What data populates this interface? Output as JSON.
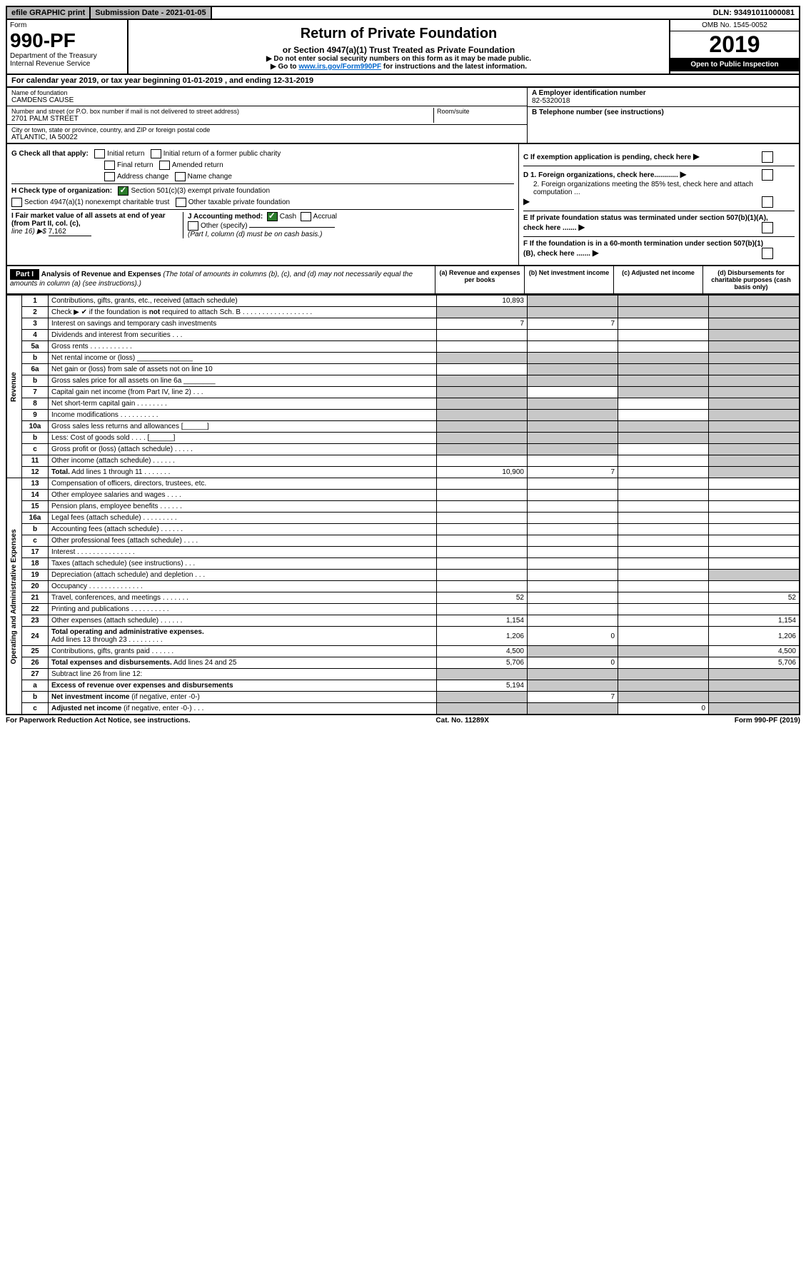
{
  "topbar": {
    "efile": "efile GRAPHIC print",
    "submission": "Submission Date - 2021-01-05",
    "dln": "DLN: 93491011000081"
  },
  "header": {
    "form_label": "Form",
    "form_number": "990-PF",
    "dept1": "Department of the Treasury",
    "dept2": "Internal Revenue Service",
    "title": "Return of Private Foundation",
    "subtitle": "or Section 4947(a)(1) Trust Treated as Private Foundation",
    "inst1": "▶ Do not enter social security numbers on this form as it may be made public.",
    "inst2_pre": "▶ Go to ",
    "inst2_link": "www.irs.gov/Form990PF",
    "inst2_post": " for instructions and the latest information.",
    "omb": "OMB No. 1545-0052",
    "year": "2019",
    "open": "Open to Public Inspection"
  },
  "calyear": "For calendar year 2019, or tax year beginning 01-01-2019                          , and ending 12-31-2019",
  "info": {
    "name_label": "Name of foundation",
    "name": "CAMDENS CAUSE",
    "addr_label": "Number and street (or P.O. box number if mail is not delivered to street address)",
    "addr": "2701 PALM STREET",
    "room_label": "Room/suite",
    "city_label": "City or town, state or province, country, and ZIP or foreign postal code",
    "city": "ATLANTIC, IA  50022",
    "a_label": "A Employer identification number",
    "a_val": "82-5320018",
    "b_label": "B Telephone number (see instructions)",
    "c_label": "C If exemption application is pending, check here",
    "d1": "D 1. Foreign organizations, check here............",
    "d2": "2. Foreign organizations meeting the 85% test, check here and attach computation ...",
    "e": "E  If private foundation status was terminated under section 507(b)(1)(A), check here .......",
    "f": "F  If the foundation is in a 60-month termination under section 507(b)(1)(B), check here .......",
    "g_label": "G Check all that apply:",
    "g_opts": [
      "Initial return",
      "Initial return of a former public charity",
      "Final return",
      "Amended return",
      "Address change",
      "Name change"
    ],
    "h_label": "H Check type of organization:",
    "h_opts": [
      "Section 501(c)(3) exempt private foundation",
      "Section 4947(a)(1) nonexempt charitable trust",
      "Other taxable private foundation"
    ],
    "i_label": "I Fair market value of all assets at end of year (from Part II, col. (c),",
    "i_line16": "line 16) ▶$ ",
    "i_val": "7,162",
    "j_label": "J Accounting method:",
    "j_cash": "Cash",
    "j_accrual": "Accrual",
    "j_other": "Other (specify)",
    "j_note": "(Part I, column (d) must be on cash basis.)"
  },
  "part1": {
    "label": "Part I",
    "title": "Analysis of Revenue and Expenses",
    "title_note": " (The total of amounts in columns (b), (c), and (d) may not necessarily equal the amounts in column (a) (see instructions).)",
    "col_a": "(a)   Revenue and expenses per books",
    "col_b": "(b)  Net investment income",
    "col_c": "(c)  Adjusted net income",
    "col_d": "(d)  Disbursements for charitable purposes (cash basis only)"
  },
  "side_labels": {
    "revenue": "Revenue",
    "expenses": "Operating and Administrative Expenses"
  },
  "lines": [
    {
      "n": "1",
      "d": "Contributions, gifts, grants, etc., received (attach schedule)",
      "a": "10,893",
      "bs": true,
      "cs": true,
      "ds": true
    },
    {
      "n": "2",
      "d": "Check ▶ ✔ if the foundation is <b>not</b> required to attach Sch. B  .  .  .  .  .  .  .  .  .  .  .  .  .  .  .  .  .  .",
      "as": true,
      "bs": true,
      "cs": true,
      "ds": true
    },
    {
      "n": "3",
      "d": "Interest on savings and temporary cash investments",
      "a": "7",
      "b": "7",
      "ds": true
    },
    {
      "n": "4",
      "d": "Dividends and interest from securities   .   .   .",
      "ds": true
    },
    {
      "n": "5a",
      "d": "Gross rents   .  .  .  .  .  .  .  .  .  .  .",
      "ds": true
    },
    {
      "n": "b",
      "d": "Net rental income or (loss)  ______________",
      "as": true,
      "bs": true,
      "cs": true,
      "ds": true
    },
    {
      "n": "6a",
      "d": "Net gain or (loss) from sale of assets not on line 10",
      "bs": true,
      "cs": true,
      "ds": true
    },
    {
      "n": "b",
      "d": "Gross sales price for all assets on line 6a ________",
      "as": true,
      "bs": true,
      "cs": true,
      "ds": true
    },
    {
      "n": "7",
      "d": "Capital gain net income (from Part IV, line 2)   .   .   .",
      "as": true,
      "cs": true,
      "ds": true
    },
    {
      "n": "8",
      "d": "Net short-term capital gain  .  .  .  .  .  .  .  .",
      "as": true,
      "bs": true,
      "ds": true
    },
    {
      "n": "9",
      "d": "Income modifications  .  .  .  .  .  .  .  .  .  .",
      "as": true,
      "bs": true,
      "ds": true
    },
    {
      "n": "10a",
      "d": "Gross sales less returns and allowances  [______]",
      "as": true,
      "bs": true,
      "cs": true,
      "ds": true
    },
    {
      "n": "b",
      "d": "Less: Cost of goods sold    .   .   .   .   [______]",
      "as": true,
      "bs": true,
      "cs": true,
      "ds": true
    },
    {
      "n": "c",
      "d": "Gross profit or (loss) (attach schedule)   .   .   .   .   .",
      "as": true,
      "bs": true,
      "ds": true
    },
    {
      "n": "11",
      "d": "Other income (attach schedule)   .   .   .   .   .   .",
      "ds": true
    },
    {
      "n": "12",
      "d": "<b>Total.</b> Add lines 1 through 11   .   .   .   .   .   .   .",
      "a": "10,900",
      "b": "7",
      "ds": true
    },
    {
      "n": "13",
      "d": "Compensation of officers, directors, trustees, etc."
    },
    {
      "n": "14",
      "d": "Other employee salaries and wages   .   .   .   ."
    },
    {
      "n": "15",
      "d": "Pension plans, employee benefits   .   .   .   .   .   ."
    },
    {
      "n": "16a",
      "d": "Legal fees (attach schedule)  .  .  .  .  .  .  .  .  ."
    },
    {
      "n": "b",
      "d": "Accounting fees (attach schedule)   .   .   .   .   .   ."
    },
    {
      "n": "c",
      "d": "Other professional fees (attach schedule)    .   .   .   ."
    },
    {
      "n": "17",
      "d": "Interest  .  .  .  .  .  .  .  .  .  .  .  .  .  .  ."
    },
    {
      "n": "18",
      "d": "Taxes (attach schedule) (see instructions)    .   .   ."
    },
    {
      "n": "19",
      "d": "Depreciation (attach schedule) and depletion    .   .   .",
      "ds": true
    },
    {
      "n": "20",
      "d": "Occupancy  .  .  .  .  .  .  .  .  .  .  .  .  .  ."
    },
    {
      "n": "21",
      "d": "Travel, conferences, and meetings  .  .  .  .  .  .  .",
      "a": "52",
      "d_v": "52"
    },
    {
      "n": "22",
      "d": "Printing and publications  .  .  .  .  .  .  .  .  .  ."
    },
    {
      "n": "23",
      "d": "Other expenses (attach schedule)   .   .   .   .   .   .",
      "a": "1,154",
      "d_v": "1,154"
    },
    {
      "n": "24",
      "d": "<b>Total operating and administrative expenses.</b><br>Add lines 13 through 23   .   .   .   .   .   .   .   .   .",
      "a": "1,206",
      "b": "0",
      "d_v": "1,206"
    },
    {
      "n": "25",
      "d": "Contributions, gifts, grants paid    .   .   .   .   .   .",
      "a": "4,500",
      "bs": true,
      "cs": true,
      "d_v": "4,500"
    },
    {
      "n": "26",
      "d": "<b>Total expenses and disbursements.</b> Add lines 24 and 25",
      "a": "5,706",
      "b": "0",
      "d_v": "5,706"
    },
    {
      "n": "27",
      "d": "Subtract line 26 from line 12:",
      "as": true,
      "bs": true,
      "cs": true,
      "ds": true
    },
    {
      "n": "a",
      "d": "<b>Excess of revenue over expenses and disbursements</b>",
      "a": "5,194",
      "bs": true,
      "cs": true,
      "ds": true
    },
    {
      "n": "b",
      "d": "<b>Net investment income</b> (if negative, enter -0-)",
      "as": true,
      "b": "7",
      "cs": true,
      "ds": true
    },
    {
      "n": "c",
      "d": "<b>Adjusted net income</b> (if negative, enter -0-)   .   .   .",
      "as": true,
      "bs": true,
      "c": "0",
      "ds": true
    }
  ],
  "footer": {
    "left": "For Paperwork Reduction Act Notice, see instructions.",
    "center": "Cat. No. 11289X",
    "right": "Form 990-PF (2019)"
  }
}
